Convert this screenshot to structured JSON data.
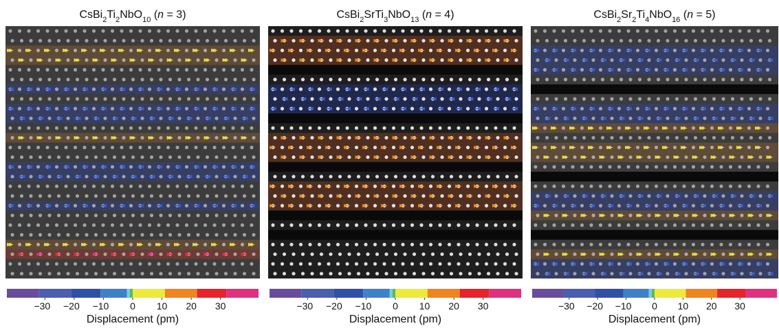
{
  "panels": [
    {
      "title": [
        {
          "text": "CsBi"
        },
        {
          "text": "2",
          "style": "sub"
        },
        {
          "text": "Ti"
        },
        {
          "text": "2",
          "style": "sub"
        },
        {
          "text": "NbO"
        },
        {
          "text": "10",
          "style": "sub"
        },
        {
          "text": " ("
        },
        {
          "text": "n",
          "style": "italic"
        },
        {
          "text": " = 3)"
        }
      ]
    },
    {
      "title": [
        {
          "text": "CsBi"
        },
        {
          "text": "2",
          "style": "sub"
        },
        {
          "text": "SrTi"
        },
        {
          "text": "3",
          "style": "sub"
        },
        {
          "text": "NbO"
        },
        {
          "text": "13",
          "style": "sub"
        },
        {
          "text": " ("
        },
        {
          "text": "n",
          "style": "italic"
        },
        {
          "text": " = 4)"
        }
      ]
    },
    {
      "title": [
        {
          "text": "CsBi"
        },
        {
          "text": "2",
          "style": "sub"
        },
        {
          "text": "Sr"
        },
        {
          "text": "2",
          "style": "sub"
        },
        {
          "text": "Ti"
        },
        {
          "text": "4",
          "style": "sub"
        },
        {
          "text": "NbO"
        },
        {
          "text": "16",
          "style": "sub"
        },
        {
          "text": " ("
        },
        {
          "text": "n",
          "style": "italic"
        },
        {
          "text": " = 5)"
        }
      ]
    }
  ],
  "colorbar": {
    "label": "Displacement (pm)",
    "lim": [
      -43,
      43
    ],
    "ticks": [
      {
        "value": -30,
        "label": "−30"
      },
      {
        "value": -20,
        "label": "−20"
      },
      {
        "value": -10,
        "label": "−10"
      },
      0,
      10,
      20,
      30
    ],
    "bounds": [
      -43,
      -32,
      -21,
      -11,
      -2,
      -1,
      0,
      11,
      22,
      32,
      43
    ],
    "colors": [
      "#6a4c9c",
      "#4a5fb0",
      "#2f50a8",
      "#3d82c8",
      "#6fd0e8",
      "#5cb85c",
      "#eeea3a",
      "#f0841e",
      "#e8232a",
      "#e0307f"
    ]
  }
}
